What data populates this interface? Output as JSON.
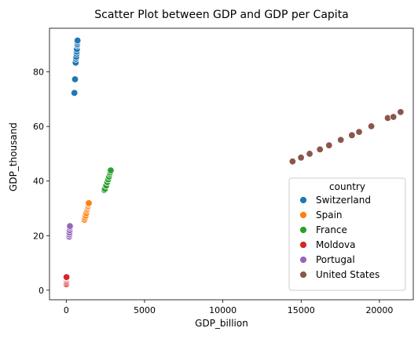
{
  "chart_data": {
    "type": "scatter",
    "title": "Scatter Plot between GDP and GDP per Capita",
    "xlabel": "GDP_billion",
    "ylabel": "GDP_thousand",
    "xlim": [
      -1070,
      22160
    ],
    "ylim": [
      -3.5,
      96
    ],
    "xticks": [
      0,
      5000,
      10000,
      15000,
      20000
    ],
    "yticks": [
      0,
      20,
      40,
      60,
      80
    ],
    "grid": false,
    "legend": {
      "title": "country",
      "position": "lower-right"
    },
    "series": [
      {
        "name": "Switzerland",
        "color": "#1f77b4",
        "points": [
          [
            520,
            72.3
          ],
          [
            560,
            77.3
          ],
          [
            600,
            83.4
          ],
          [
            620,
            84.8
          ],
          [
            640,
            85.5
          ],
          [
            660,
            86.6
          ],
          [
            670,
            87.4
          ],
          [
            680,
            88.3
          ],
          [
            700,
            89.7
          ],
          [
            705,
            90.2
          ],
          [
            710,
            90.9
          ],
          [
            720,
            91.5
          ]
        ]
      },
      {
        "name": "Spain",
        "color": "#ff7f0e",
        "points": [
          [
            1170,
            25.8
          ],
          [
            1200,
            26.5
          ],
          [
            1240,
            27.3
          ],
          [
            1280,
            28.2
          ],
          [
            1320,
            29.2
          ],
          [
            1350,
            29.8
          ],
          [
            1380,
            30.4
          ],
          [
            1400,
            30.9
          ],
          [
            1420,
            31.5
          ],
          [
            1440,
            31.9
          ]
        ]
      },
      {
        "name": "France",
        "color": "#2ca02c",
        "points": [
          [
            2430,
            36.7
          ],
          [
            2470,
            37.1
          ],
          [
            2550,
            38.3
          ],
          [
            2620,
            39.6
          ],
          [
            2680,
            40.6
          ],
          [
            2730,
            41.6
          ],
          [
            2780,
            42.6
          ],
          [
            2810,
            43.2
          ],
          [
            2840,
            43.9
          ]
        ]
      },
      {
        "name": "Moldova",
        "color": "#d62728",
        "points": [
          [
            8,
            2.2
          ],
          [
            10,
            2.8
          ],
          [
            11,
            3.3
          ],
          [
            12,
            3.8
          ],
          [
            13,
            4.3
          ],
          [
            14,
            4.6
          ],
          [
            15,
            4.8
          ]
        ]
      },
      {
        "name": "Portugal",
        "color": "#9467bd",
        "points": [
          [
            190,
            19.6
          ],
          [
            200,
            20.4
          ],
          [
            205,
            21.1
          ],
          [
            215,
            22.0
          ],
          [
            225,
            22.9
          ],
          [
            235,
            23.5
          ]
        ]
      },
      {
        "name": "United States",
        "color": "#8c564b",
        "points": [
          [
            14450,
            47.2
          ],
          [
            14990,
            48.6
          ],
          [
            15540,
            50.0
          ],
          [
            16200,
            51.6
          ],
          [
            16780,
            53.1
          ],
          [
            17530,
            55.1
          ],
          [
            18240,
            56.8
          ],
          [
            18700,
            58.0
          ],
          [
            19480,
            60.1
          ],
          [
            20530,
            63.1
          ],
          [
            20890,
            63.5
          ],
          [
            21350,
            65.3
          ]
        ]
      }
    ]
  }
}
